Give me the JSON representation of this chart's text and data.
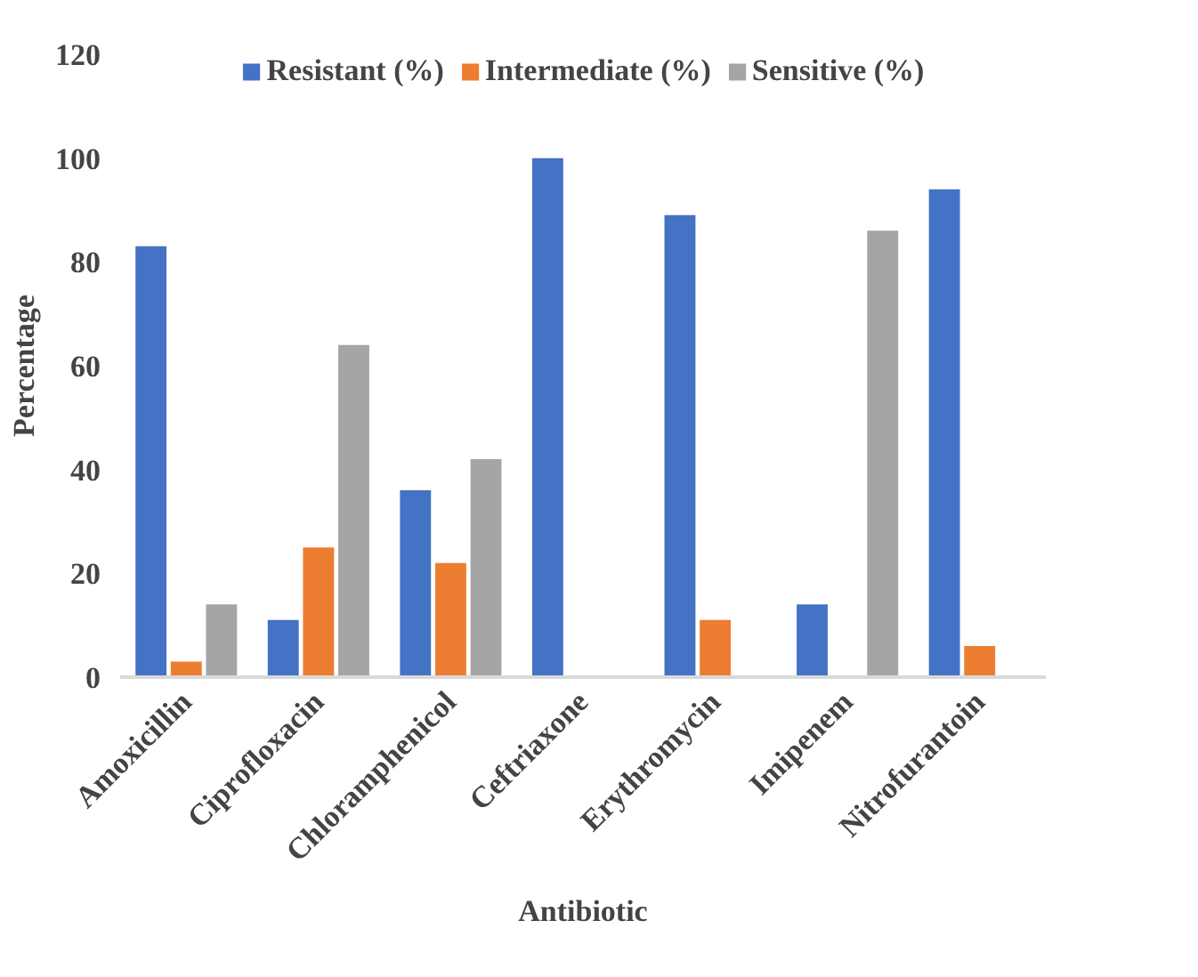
{
  "chart_data": {
    "type": "bar",
    "xlabel": "Antibiotic",
    "ylabel": "Percentage",
    "categories": [
      "Amoxicillin",
      "Ciprofloxacin",
      "Chloramphenicol",
      "Ceftriaxone",
      "Erythromycin",
      "Imipenem",
      "Nitrofurantoin"
    ],
    "series": [
      {
        "name": "Resistant (%)",
        "color": "#4472c4",
        "values": [
          83,
          11,
          36,
          100,
          89,
          14,
          94
        ]
      },
      {
        "name": "Intermediate (%)",
        "color": "#ed7d31",
        "values": [
          3,
          25,
          22,
          0,
          11,
          0,
          6
        ]
      },
      {
        "name": "Sensitive (%)",
        "color": "#a5a5a5",
        "values": [
          14,
          64,
          42,
          0,
          0,
          86,
          0
        ]
      }
    ],
    "ylim": [
      0,
      120
    ],
    "yticks": [
      0,
      20,
      40,
      60,
      80,
      100,
      120
    ],
    "grid": false,
    "legend": "top"
  }
}
